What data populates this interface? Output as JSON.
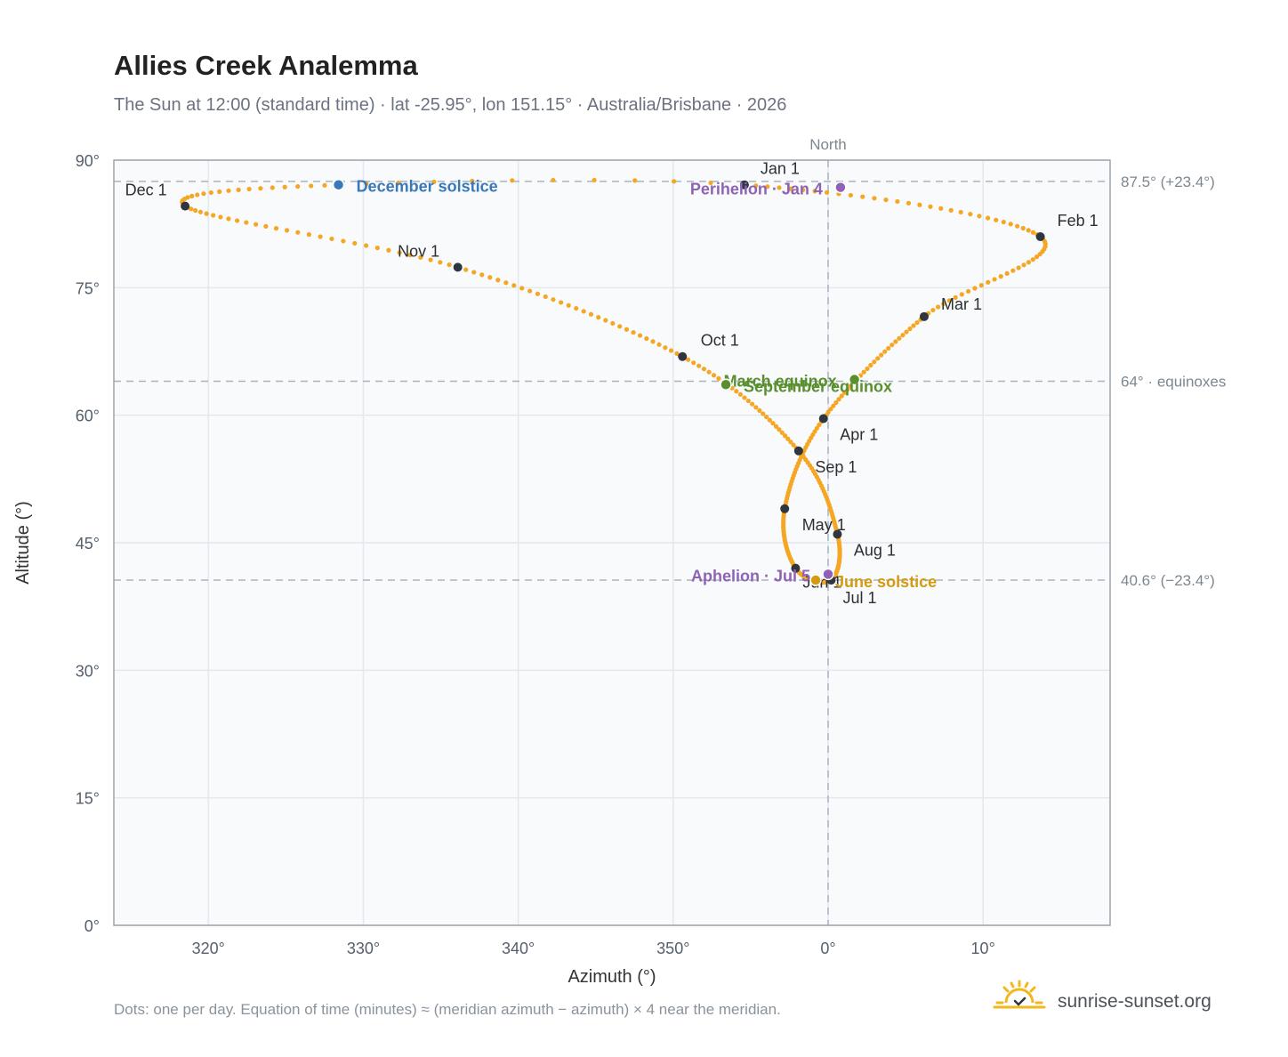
{
  "header": {
    "title": "Allies Creek Analemma",
    "subtitle": "The Sun at 12:00 (standard time) · lat -25.95°, lon 151.15° · Australia/Brisbane · 2026"
  },
  "footer": {
    "note": "Dots: one per day. Equation of time (minutes) ≈ (meridian azimuth − azimuth) × 4 near the meridian.",
    "brand": "sunrise-sunset.org"
  },
  "colors": {
    "curve": "#f5a623",
    "month_marker": "#2f3640",
    "december_solstice": "#3b78b8",
    "june_solstice": "#d49a12",
    "equinox": "#5a8f2e",
    "perihelion_aphelion": "#8e63b5",
    "grid": "#e3e8ee",
    "plot_bg": "#f8fafc",
    "frame": "#9aa5b1"
  },
  "chart_data": {
    "type": "scatter",
    "title": "Allies Creek Analemma",
    "xlabel": "Azimuth (°)",
    "ylabel": "Altitude (°)",
    "xlim": [
      313.9,
      18.2
    ],
    "ylim": [
      0,
      90
    ],
    "x_ticks": [
      {
        "value": 320,
        "label": "320°"
      },
      {
        "value": 330,
        "label": "330°"
      },
      {
        "value": 340,
        "label": "340°"
      },
      {
        "value": 350,
        "label": "350°"
      },
      {
        "value": 0,
        "label": "0°"
      },
      {
        "value": 10,
        "label": "10°"
      }
    ],
    "y_ticks": [
      {
        "value": 0,
        "label": "0°"
      },
      {
        "value": 15,
        "label": "15°"
      },
      {
        "value": 30,
        "label": "30°"
      },
      {
        "value": 45,
        "label": "45°"
      },
      {
        "value": 60,
        "label": "60°"
      },
      {
        "value": 75,
        "label": "75°"
      },
      {
        "value": 90,
        "label": "90°"
      }
    ],
    "grid": true,
    "reference_lines": [
      {
        "axis": "y",
        "value": 87.5,
        "label": "87.5° (+23.4°)"
      },
      {
        "axis": "y",
        "value": 64,
        "label": "64° · equinoxes"
      },
      {
        "axis": "y",
        "value": 40.6,
        "label": "40.6° (−23.4°)"
      },
      {
        "axis": "x",
        "value": 0,
        "label": "North"
      }
    ],
    "curve_keypoints": [
      {
        "day": 1,
        "az": -5.4,
        "alt": 87.1
      },
      {
        "day": 32,
        "az": 13.7,
        "alt": 81.0
      },
      {
        "day": 60,
        "az": 6.2,
        "alt": 71.6
      },
      {
        "day": 91,
        "az": -0.3,
        "alt": 59.6
      },
      {
        "day": 121,
        "az": -2.8,
        "alt": 49.0
      },
      {
        "day": 152,
        "az": -2.1,
        "alt": 42.0
      },
      {
        "day": 182,
        "az": 0.2,
        "alt": 40.6
      },
      {
        "day": 213,
        "az": 0.6,
        "alt": 46.0
      },
      {
        "day": 244,
        "az": -1.9,
        "alt": 55.8
      },
      {
        "day": 274,
        "az": -9.4,
        "alt": 66.9
      },
      {
        "day": 305,
        "az": -23.9,
        "alt": 77.4
      },
      {
        "day": 335,
        "az": -41.5,
        "alt": 84.6
      },
      {
        "day": 355,
        "az": -31.6,
        "alt": 87.1
      }
    ],
    "month_markers": [
      {
        "label": "Jan 1",
        "az": -5.4,
        "alt": 87.1
      },
      {
        "label": "Feb 1",
        "az": 13.7,
        "alt": 81.0
      },
      {
        "label": "Mar 1",
        "az": 6.2,
        "alt": 71.6
      },
      {
        "label": "Apr 1",
        "az": -0.3,
        "alt": 59.6
      },
      {
        "label": "May 1",
        "az": -2.8,
        "alt": 49.0
      },
      {
        "label": "Jun 1",
        "az": -2.1,
        "alt": 42.0
      },
      {
        "label": "Jul 1",
        "az": 0.2,
        "alt": 40.6
      },
      {
        "label": "Aug 1",
        "az": 0.6,
        "alt": 46.0
      },
      {
        "label": "Sep 1",
        "az": -1.9,
        "alt": 55.8
      },
      {
        "label": "Oct 1",
        "az": -9.4,
        "alt": 66.9
      },
      {
        "label": "Nov 1",
        "az": -23.9,
        "alt": 77.4
      },
      {
        "label": "Dec 1",
        "az": -41.5,
        "alt": 84.6
      }
    ],
    "events": [
      {
        "label": "December solstice",
        "az": -31.6,
        "alt": 87.1,
        "color_key": "december_solstice"
      },
      {
        "label": "Perihelion · Jan 4",
        "az": 0.8,
        "alt": 86.8,
        "color_key": "perihelion_aphelion"
      },
      {
        "label": "March equinox",
        "az": 1.7,
        "alt": 64.2,
        "color_key": "equinox"
      },
      {
        "label": "September equinox",
        "az": -6.6,
        "alt": 63.6,
        "color_key": "equinox"
      },
      {
        "label": "Aphelion · Jul 5",
        "az": 0.0,
        "alt": 41.3,
        "color_key": "perihelion_aphelion"
      },
      {
        "label": "June solstice",
        "az": -0.8,
        "alt": 40.6,
        "color_key": "june_solstice"
      }
    ]
  }
}
